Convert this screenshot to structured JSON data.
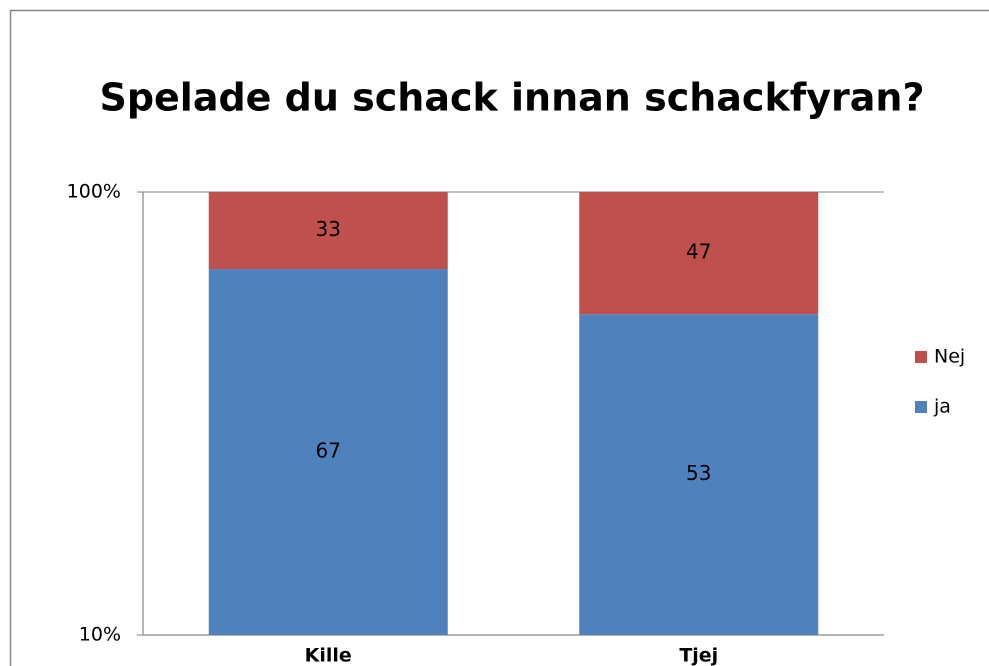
{
  "chart_data": {
    "type": "bar",
    "stacked": true,
    "title": "Spelade du schack innan schackfyran?",
    "categories": [
      "Kille",
      "Tjej"
    ],
    "series": [
      {
        "name": "ja",
        "color": "#4f81bd",
        "values": [
          67,
          53
        ]
      },
      {
        "name": "Nej",
        "color": "#c0504d",
        "values": [
          33,
          47
        ]
      }
    ],
    "ylim": [
      10,
      100
    ],
    "ylog": true,
    "yticks": [
      {
        "value": 10,
        "label": "10%"
      },
      {
        "value": 100,
        "label": "100%"
      }
    ],
    "legend": "right"
  }
}
